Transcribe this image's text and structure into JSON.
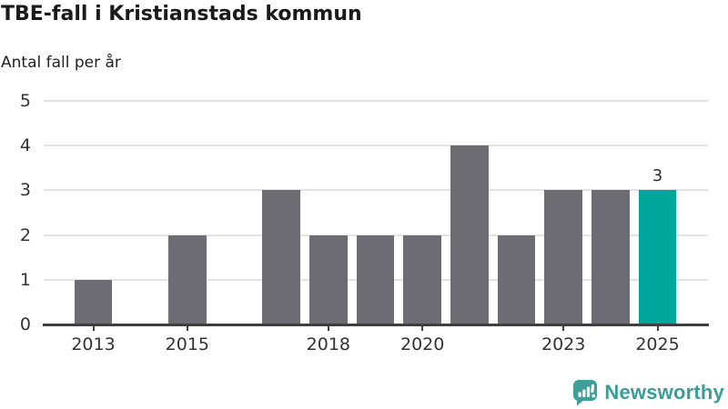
{
  "title": "TBE-fall i Kristianstads kommun",
  "subtitle": "Antal fall per år",
  "chart_data": {
    "type": "bar",
    "title": "TBE-fall i Kristianstads kommun",
    "ylabel": "Antal fall per år",
    "xlabel": "",
    "categories": [
      "2013",
      "2014",
      "2015",
      "2016",
      "2017",
      "2018",
      "2019",
      "2020",
      "2021",
      "2022",
      "2023",
      "2024",
      "2025"
    ],
    "values": [
      1,
      0,
      2,
      0,
      3,
      2,
      2,
      2,
      4,
      2,
      3,
      3,
      3
    ],
    "ylim": [
      0,
      5
    ],
    "y_ticks": [
      "0",
      "1",
      "2",
      "3",
      "4",
      "5"
    ],
    "x_tick_indices": [
      0,
      2,
      5,
      7,
      10,
      12
    ],
    "x_tick_labels": [
      "2013",
      "2015",
      "2018",
      "2020",
      "2023",
      "2025"
    ],
    "highlight_index": 12,
    "highlight_value_label": "3",
    "grid": "horizontal",
    "legend": "none",
    "colors": {
      "bar": "#6d6c72",
      "highlight": "#00a69a",
      "gridline": "#e3e3e3",
      "axis": "#3f3f3f",
      "tick_text": "#333333",
      "title_text": "#1a1a1a"
    }
  },
  "logo": {
    "text": "Newsworthy",
    "text_color": "#3a9d97",
    "icon_color": "#3f9f99",
    "icon": "newsworthy-speech-bubble-chart-icon"
  }
}
